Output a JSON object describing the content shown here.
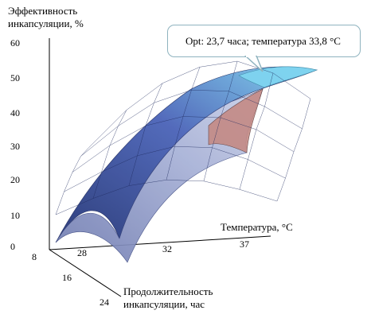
{
  "chart_data": {
    "type": "surface3d",
    "title": "",
    "zlabel_lines": [
      "Эффективность",
      "инкапсуляции, %"
    ],
    "xlabel": "Температура, °C",
    "ylabel_lines": [
      "Продолжительность",
      "инкапсуляции, час"
    ],
    "z_ticks": [
      "0",
      "10",
      "20",
      "30",
      "40",
      "50",
      "60"
    ],
    "x_ticks": [
      "28",
      "32",
      "37"
    ],
    "y_ticks": [
      "8",
      "16",
      "24"
    ],
    "zlim": [
      0,
      60
    ],
    "xlim": [
      25,
      38
    ],
    "ylim": [
      8,
      24
    ],
    "grid": "surface mesh",
    "annotation": "Opt: 23,7 часа; температура 33,8 °C",
    "optimum": {
      "time_h": 23.7,
      "temperature_c": 33.8,
      "efficiency_pct": 50
    },
    "surface_rows": [
      {
        "time_h": 8,
        "temperature_c": [
          25,
          27.2,
          29.3,
          31.5,
          33.7,
          35.8,
          38
        ],
        "efficiency_pct": [
          10,
          14,
          17,
          18,
          17,
          14,
          10
        ]
      },
      {
        "time_h": 12,
        "temperature_c": [
          25,
          27.2,
          29.3,
          31.5,
          33.7,
          35.8,
          38
        ],
        "efficiency_pct": [
          16,
          21,
          25,
          27,
          26,
          22,
          16
        ]
      },
      {
        "time_h": 16,
        "temperature_c": [
          25,
          27.2,
          29.3,
          31.5,
          33.7,
          35.8,
          38
        ],
        "efficiency_pct": [
          21,
          28,
          33,
          35,
          34,
          30,
          23
        ]
      },
      {
        "time_h": 20,
        "temperature_c": [
          25,
          27.2,
          29.3,
          31.5,
          33.7,
          35.8,
          38
        ],
        "efficiency_pct": [
          25,
          33,
          39,
          42,
          41,
          36,
          29
        ]
      },
      {
        "time_h": 24,
        "temperature_c": [
          25,
          27.2,
          29.3,
          31.5,
          33.7,
          35.8,
          38
        ],
        "efficiency_pct": [
          27,
          37,
          44,
          48,
          49,
          45,
          37
        ]
      }
    ]
  },
  "colors": {
    "surface_front": "#9ba5c8",
    "surface_dark": "#2f3f8a",
    "surface_peak": "#7fd4f0",
    "surface_red": "#c48a85",
    "callout_border": "#8fb3bf"
  }
}
